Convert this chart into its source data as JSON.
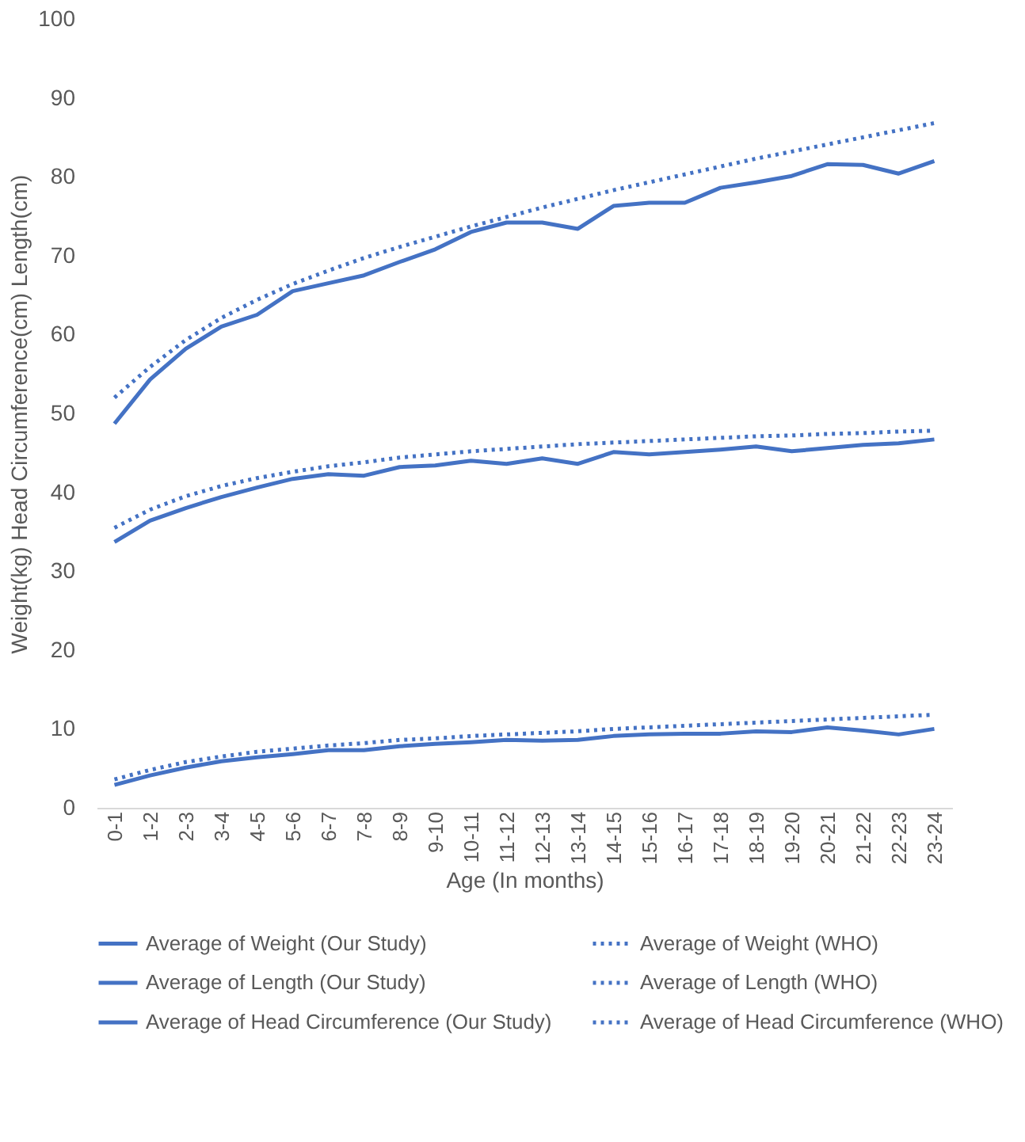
{
  "chart_data": {
    "type": "line",
    "xlabel": "Age (In months)",
    "ylabel": "Weight(kg) Head Circumference(cm)          Length(cm)",
    "categories": [
      "0-1",
      "1-2",
      "2-3",
      "3-4",
      "4-5",
      "5-6",
      "6-7",
      "7-8",
      "8-9",
      "9-10",
      "10-11",
      "11-12",
      "12-13",
      "13-14",
      "14-15",
      "15-16",
      "16-17",
      "17-18",
      "18-19",
      "19-20",
      "20-21",
      "21-22",
      "22-23",
      "23-24"
    ],
    "ylim": [
      0,
      100
    ],
    "yticks": [
      0,
      10,
      20,
      30,
      40,
      50,
      60,
      70,
      80,
      90,
      100
    ],
    "grid": false,
    "legend": "bottom",
    "marker": "none",
    "series": [
      {
        "name": "Average of Weight (Our Study)",
        "color": "#4472c4",
        "line_style": "solid",
        "values": [
          2.9,
          4.1,
          5.1,
          5.9,
          6.4,
          6.8,
          7.3,
          7.3,
          7.8,
          8.1,
          8.3,
          8.6,
          8.5,
          8.6,
          9.1,
          9.3,
          9.4,
          9.4,
          9.7,
          9.6,
          10.2,
          9.8,
          9.3,
          10.0
        ]
      },
      {
        "name": "Average of Weight (WHO)",
        "color": "#4472c4",
        "line_style": "dotted",
        "values": [
          3.6,
          4.8,
          5.8,
          6.5,
          7.1,
          7.5,
          7.9,
          8.2,
          8.6,
          8.8,
          9.1,
          9.3,
          9.5,
          9.7,
          10.0,
          10.2,
          10.4,
          10.6,
          10.8,
          11.0,
          11.2,
          11.4,
          11.6,
          11.8
        ]
      },
      {
        "name": "Average of Length (Our Study)",
        "color": "#4472c4",
        "line_style": "solid",
        "values": [
          48.7,
          54.3,
          58.2,
          61.0,
          62.5,
          65.5,
          66.5,
          67.5,
          69.2,
          70.8,
          73.0,
          74.2,
          74.2,
          73.4,
          76.3,
          76.7,
          76.7,
          78.6,
          79.3,
          80.1,
          81.6,
          81.5,
          80.4,
          82.0
        ]
      },
      {
        "name": "Average of Length (WHO)",
        "color": "#4472c4",
        "line_style": "dotted",
        "values": [
          52.0,
          55.9,
          59.3,
          62.1,
          64.4,
          66.4,
          68.1,
          69.7,
          71.1,
          72.4,
          73.7,
          74.9,
          76.1,
          77.2,
          78.3,
          79.3,
          80.3,
          81.3,
          82.3,
          83.2,
          84.1,
          85.0,
          85.9,
          86.8
        ]
      },
      {
        "name": "Average of Head Circumference (Our Study)",
        "color": "#4472c4",
        "line_style": "solid",
        "values": [
          33.7,
          36.4,
          38.0,
          39.4,
          40.6,
          41.7,
          42.3,
          42.1,
          43.2,
          43.4,
          44.0,
          43.6,
          44.3,
          43.6,
          45.1,
          44.8,
          45.1,
          45.4,
          45.8,
          45.2,
          45.6,
          46.0,
          46.2,
          46.7
        ]
      },
      {
        "name": "Average of Head Circumference (WHO)",
        "color": "#4472c4",
        "line_style": "dotted",
        "values": [
          35.5,
          37.8,
          39.5,
          40.8,
          41.8,
          42.6,
          43.3,
          43.8,
          44.4,
          44.8,
          45.2,
          45.5,
          45.8,
          46.1,
          46.3,
          46.5,
          46.7,
          46.9,
          47.1,
          47.2,
          47.4,
          47.5,
          47.7,
          47.8
        ]
      }
    ]
  }
}
